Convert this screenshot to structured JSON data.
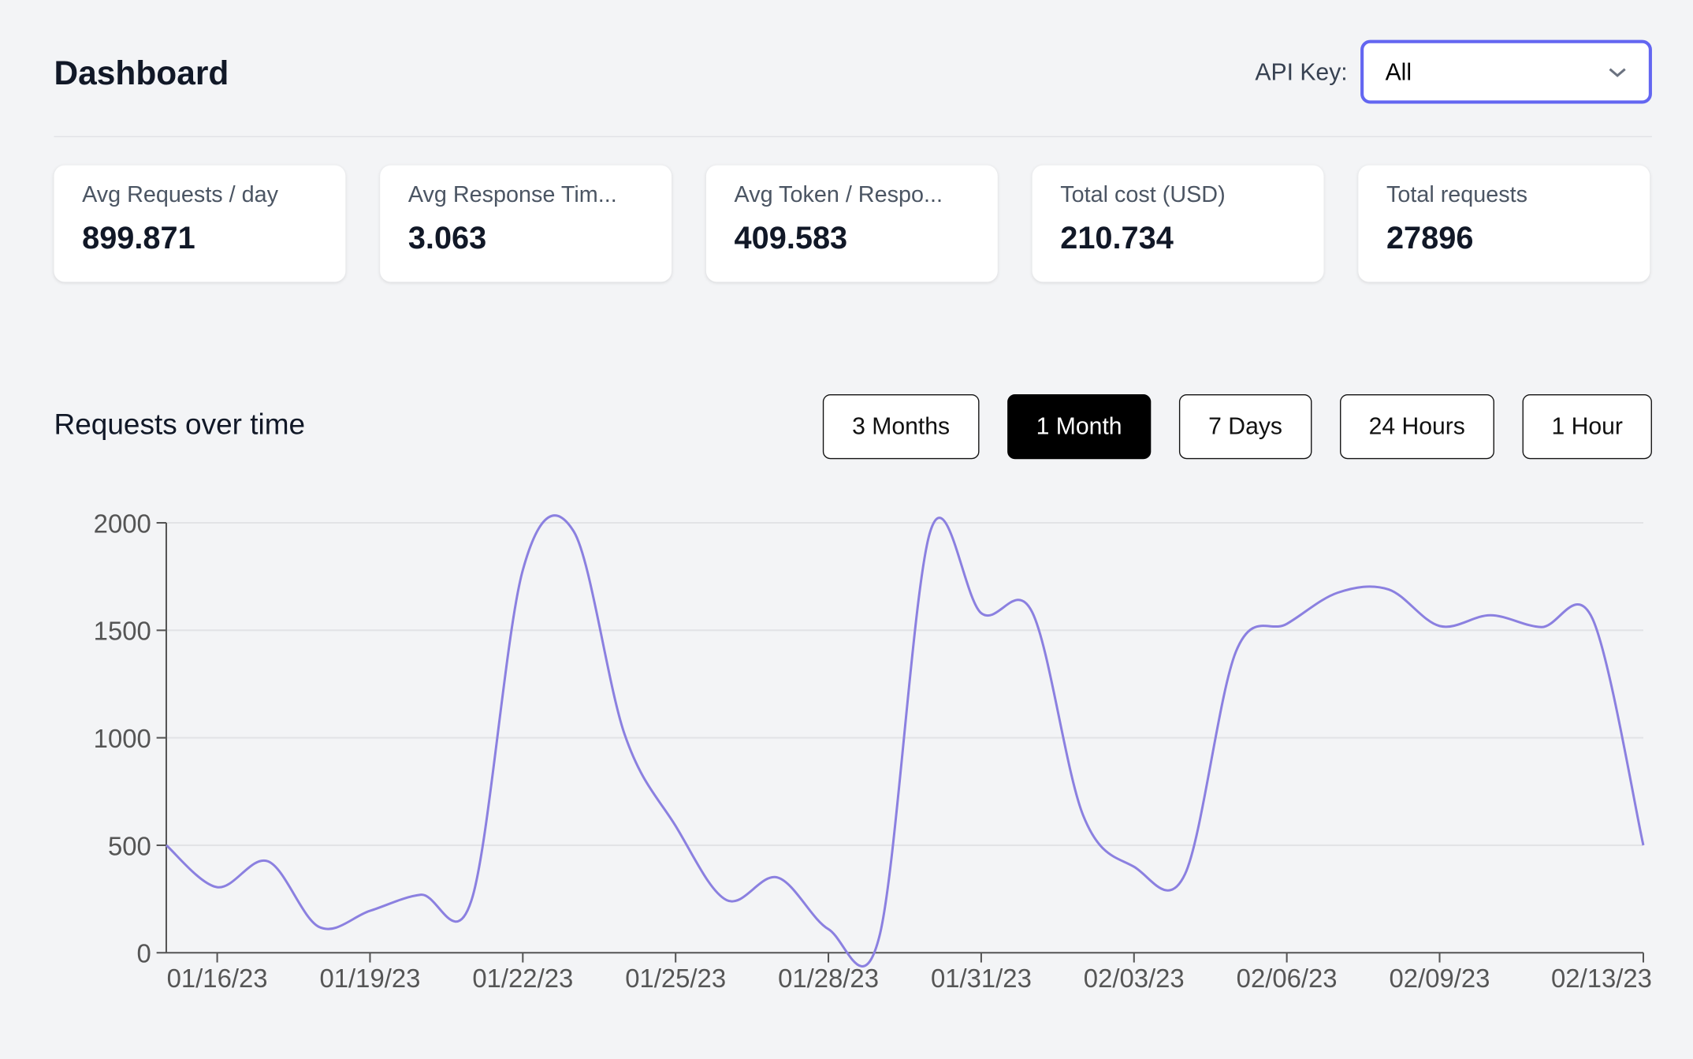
{
  "header": {
    "title": "Dashboard",
    "api_key_label": "API Key:",
    "api_key_value": "All"
  },
  "stats": [
    {
      "label": "Avg Requests / day",
      "value": "899.871"
    },
    {
      "label": "Avg Response Tim...",
      "value": "3.063"
    },
    {
      "label": "Avg Token / Respo...",
      "value": "409.583"
    },
    {
      "label": "Total cost (USD)",
      "value": "210.734"
    },
    {
      "label": "Total requests",
      "value": "27896"
    }
  ],
  "section": {
    "title": "Requests over time"
  },
  "ranges": [
    {
      "label": "3 Months",
      "active": false
    },
    {
      "label": "1 Month",
      "active": true
    },
    {
      "label": "7 Days",
      "active": false
    },
    {
      "label": "24 Hours",
      "active": false
    },
    {
      "label": "1 Hour",
      "active": false
    }
  ],
  "colors": {
    "accent": "#6366f1",
    "line": "#8b80e0",
    "active_button": "#000000"
  },
  "chart_data": {
    "type": "line",
    "x": [
      "01/15/23",
      "01/16/23",
      "01/17/23",
      "01/18/23",
      "01/19/23",
      "01/20/23",
      "01/21/23",
      "01/22/23",
      "01/23/23",
      "01/24/23",
      "01/25/23",
      "01/26/23",
      "01/27/23",
      "01/28/23",
      "01/29/23",
      "01/30/23",
      "01/31/23",
      "02/01/23",
      "02/02/23",
      "02/03/23",
      "02/04/23",
      "02/05/23",
      "02/06/23",
      "02/07/23",
      "02/08/23",
      "02/09/23",
      "02/10/23",
      "02/11/23",
      "02/12/23",
      "02/13/23"
    ],
    "values": [
      500,
      305,
      425,
      120,
      195,
      270,
      250,
      1780,
      1960,
      1015,
      590,
      245,
      350,
      110,
      75,
      1960,
      1580,
      1585,
      640,
      400,
      365,
      1400,
      1530,
      1675,
      1690,
      1520,
      1570,
      1515,
      1555,
      500
    ],
    "xticks": [
      "01/16/23",
      "01/19/23",
      "01/22/23",
      "01/25/23",
      "01/28/23",
      "01/31/23",
      "02/03/23",
      "02/06/23",
      "02/09/23",
      "02/13/23"
    ],
    "yticks": [
      "0",
      "500",
      "1000",
      "1500",
      "2000"
    ],
    "ylim": [
      0,
      2000
    ],
    "grid": true
  }
}
